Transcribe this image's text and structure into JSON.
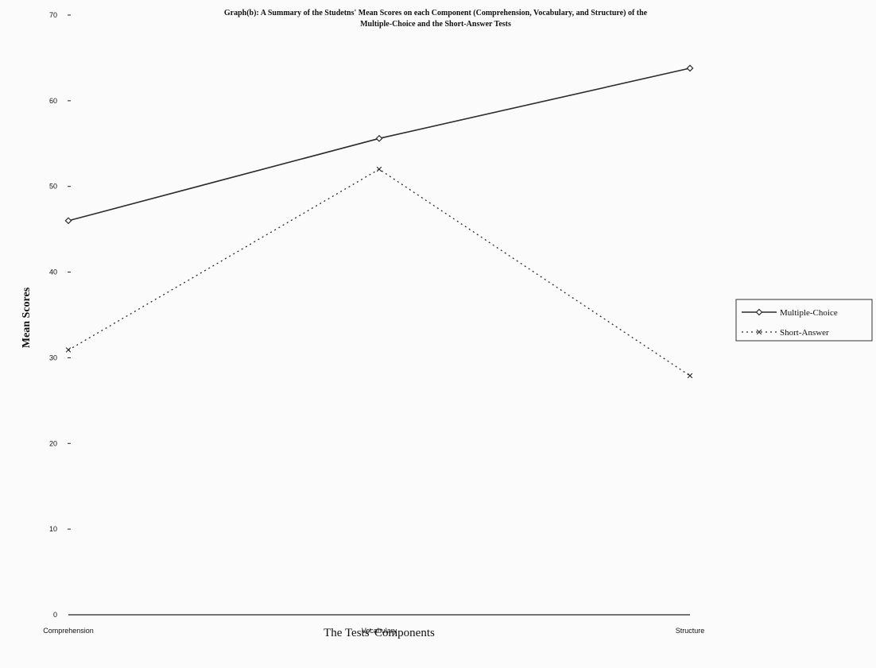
{
  "chart_data": {
    "type": "line",
    "title_lines": [
      "Graph(b): A Summary of the Studetns' Mean Scores on each Component (Comprehension, Vocabulary, and Structure) of the",
      "Multiple-Choice and the Short-Answer Tests"
    ],
    "xlabel": "The Tests' Components",
    "ylabel": "Mean Scores",
    "categories": [
      "Comprehension",
      "Vocabulary",
      "Structure"
    ],
    "ylim": [
      0,
      70
    ],
    "yticks": [
      0,
      10,
      20,
      30,
      40,
      50,
      60,
      70
    ],
    "ytick_labels": [
      "0",
      "10",
      "20",
      "30",
      "40",
      "50",
      "60",
      "70"
    ],
    "grid": false,
    "legend_position": "right",
    "series": [
      {
        "name": "Multiple-Choice",
        "values": [
          46,
          55.6,
          63.8
        ],
        "style": "solid",
        "marker": "diamond",
        "color": "#2b2b2b"
      },
      {
        "name": "Short-Answer",
        "values": [
          30.9,
          52,
          27.9
        ],
        "style": "dotted",
        "marker": "x",
        "color": "#2b2b2b"
      }
    ]
  }
}
